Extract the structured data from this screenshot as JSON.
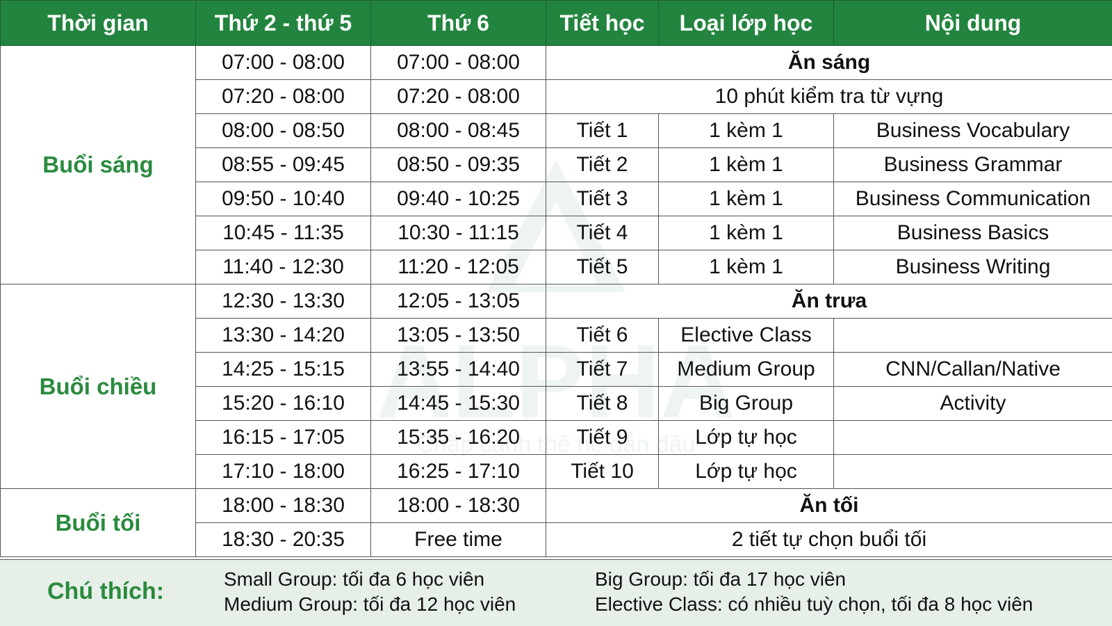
{
  "headers": [
    "Thời gian",
    "Thứ 2 - thứ 5",
    "Thứ 6",
    "Tiết học",
    "Loại lớp học",
    "Nội dung"
  ],
  "sessions": [
    {
      "label": "Buổi sáng",
      "rows": 7
    },
    {
      "label": "Buổi chiều",
      "rows": 6
    },
    {
      "label": "Buổi tối",
      "rows": 2
    }
  ],
  "rows": [
    {
      "mon_thu": "07:00 - 08:00",
      "fri": "07:00 - 08:00",
      "span": "Ăn sáng",
      "bold": true
    },
    {
      "mon_thu": "07:20 - 08:00",
      "fri": "07:20 - 08:00",
      "span": "10 phút kiểm tra từ vựng"
    },
    {
      "mon_thu": "08:00 - 08:50",
      "fri": "08:00 - 08:45",
      "period": "Tiết 1",
      "type": "1 kèm 1",
      "content": "Business Vocabulary"
    },
    {
      "mon_thu": "08:55 - 09:45",
      "fri": "08:50 - 09:35",
      "period": "Tiết 2",
      "type": "1 kèm 1",
      "content": "Business Grammar"
    },
    {
      "mon_thu": "09:50 - 10:40",
      "fri": "09:40 - 10:25",
      "period": "Tiết 3",
      "type": "1 kèm 1",
      "content": "Business Communication"
    },
    {
      "mon_thu": "10:45 - 11:35",
      "fri": "10:30 - 11:15",
      "period": "Tiết 4",
      "type": "1 kèm 1",
      "content": "Business Basics"
    },
    {
      "mon_thu": "11:40 - 12:30",
      "fri": "11:20 - 12:05",
      "period": "Tiết 5",
      "type": "1 kèm 1",
      "content": "Business Writing"
    },
    {
      "mon_thu": "12:30 - 13:30",
      "fri": "12:05 - 13:05",
      "span": "Ăn trưa",
      "bold": true
    },
    {
      "mon_thu": "13:30 - 14:20",
      "fri": "13:05 - 13:50",
      "period": "Tiết 6",
      "type": "Elective Class",
      "content": ""
    },
    {
      "mon_thu": "14:25 - 15:15",
      "fri": "13:55 - 14:40",
      "period": "Tiết 7",
      "type": "Medium Group",
      "content": "CNN/Callan/Native"
    },
    {
      "mon_thu": "15:20 - 16:10",
      "fri": "14:45 - 15:30",
      "period": "Tiết 8",
      "type": "Big Group",
      "content": "Activity"
    },
    {
      "mon_thu": "16:15 - 17:05",
      "fri": "15:35 - 16:20",
      "period": "Tiết 9",
      "type": "Lớp tự học",
      "content": ""
    },
    {
      "mon_thu": "17:10 - 18:00",
      "fri": "16:25 - 17:10",
      "period": "Tiết 10",
      "type": "Lớp tự học",
      "content": ""
    },
    {
      "mon_thu": "18:00 - 18:30",
      "fri": "18:00 - 18:30",
      "span": "Ăn tối",
      "bold": true
    },
    {
      "mon_thu": "18:30 - 20:35",
      "fri": "Free time",
      "span": "2 tiết tự chọn buổi tối"
    }
  ],
  "legend": {
    "title": "Chú thích:",
    "notes": [
      "Small Group: tối đa 6 học viên",
      "Medium Group:  tối đa 12 học viên",
      "Big Group: tối đa 17 học viên",
      "Elective Class: có nhiều tuỳ chọn, tối đa 8 học viên"
    ]
  },
  "watermark": {
    "logo_text": "ALPHA",
    "slogan": "Chắp cánh thế hệ dẫn đầu"
  },
  "colors": {
    "header_bg": "#23843f",
    "session_text": "#2a8a3e",
    "legend_bg": "#e6efe8"
  }
}
